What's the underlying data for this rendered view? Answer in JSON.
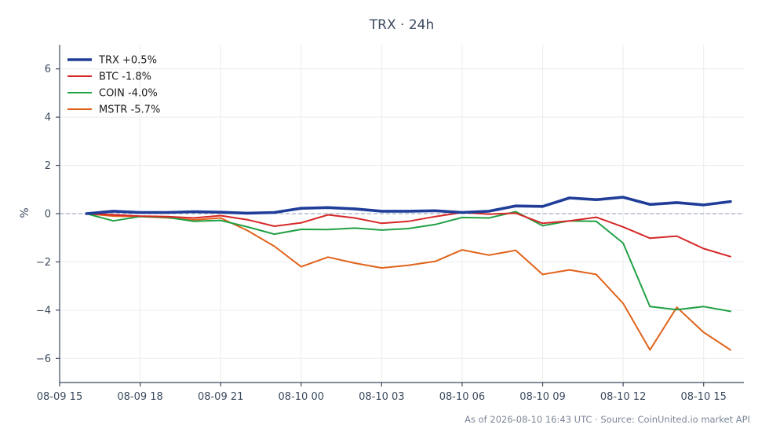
{
  "chart_data": {
    "type": "line",
    "title": "TRX · 24h",
    "ylabel": "%",
    "xlabel": "",
    "ylim": [
      -7,
      7
    ],
    "yticks": [
      6,
      4,
      2,
      0,
      -2,
      -4,
      -6
    ],
    "ytick_labels": [
      "6",
      "4",
      "2",
      "0",
      "−2",
      "−4",
      "−6"
    ],
    "xlim": [
      15,
      40.5
    ],
    "xticks": [
      15,
      18,
      21,
      24,
      27,
      30,
      33,
      36,
      39
    ],
    "xtick_labels": [
      "08-09 15",
      "08-09 18",
      "08-09 21",
      "08-10 00",
      "08-10 03",
      "08-10 06",
      "08-10 09",
      "08-10 12",
      "08-10 15"
    ],
    "x": [
      16,
      17,
      18,
      19,
      20,
      21,
      22,
      23,
      24,
      25,
      26,
      27,
      28,
      29,
      30,
      31,
      32,
      33,
      34,
      35,
      36,
      37,
      38,
      39,
      40
    ],
    "series": [
      {
        "name": "TRX +0.5%",
        "color": "#1f3d99",
        "width": 3.6,
        "values": [
          0.0,
          0.1,
          0.05,
          0.05,
          0.08,
          0.06,
          0.02,
          0.05,
          0.22,
          0.25,
          0.2,
          0.1,
          0.1,
          0.12,
          0.05,
          0.1,
          0.32,
          0.3,
          0.65,
          0.58,
          0.68,
          0.38,
          0.46,
          0.36,
          0.5
        ]
      },
      {
        "name": "BTC -1.8%",
        "color": "#d62728",
        "width": 2,
        "values": [
          0.0,
          -0.05,
          -0.1,
          -0.12,
          -0.18,
          -0.08,
          -0.25,
          -0.52,
          -0.38,
          -0.05,
          -0.18,
          -0.4,
          -0.32,
          -0.12,
          0.05,
          -0.02,
          0.02,
          -0.4,
          -0.3,
          -0.15,
          -0.55,
          -1.02,
          -0.93,
          -1.45,
          -1.78
        ]
      },
      {
        "name": "COIN -4.0%",
        "color": "#22a045",
        "width": 2,
        "values": [
          0.0,
          -0.3,
          -0.12,
          -0.15,
          -0.32,
          -0.28,
          -0.55,
          -0.85,
          -0.65,
          -0.66,
          -0.6,
          -0.68,
          -0.62,
          -0.45,
          -0.16,
          -0.18,
          0.08,
          -0.5,
          -0.3,
          -0.32,
          -1.22,
          -3.85,
          -3.98,
          -3.85,
          -4.05
        ]
      },
      {
        "name": "MSTR -5.7%",
        "color": "#e0631a",
        "width": 2,
        "values": [
          0.0,
          -0.1,
          -0.12,
          -0.17,
          -0.26,
          -0.18,
          -0.7,
          -1.35,
          -2.2,
          -1.8,
          -2.05,
          -2.25,
          -2.14,
          -1.98,
          -1.5,
          -1.72,
          -1.52,
          -2.52,
          -2.33,
          -2.52,
          -3.72,
          -5.65,
          -3.88,
          -4.92,
          -5.65
        ]
      }
    ],
    "zero_line": true,
    "grid": true,
    "legend_position": "top-left"
  },
  "footer": "As of 2026-08-10 16:43 UTC · Source: CoinUnited.io market API"
}
